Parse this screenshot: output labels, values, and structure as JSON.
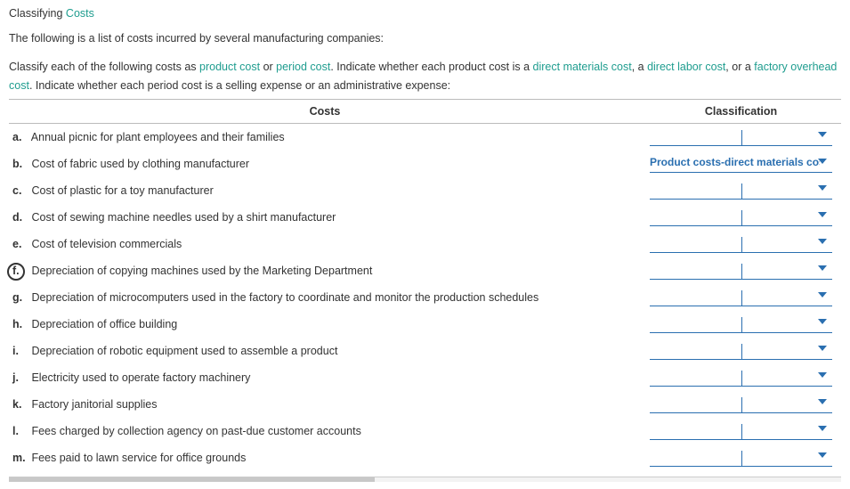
{
  "title": {
    "part1": "Classifying ",
    "part2": "Costs"
  },
  "intro": "The following is a list of costs incurred by several manufacturing companies:",
  "instr": {
    "p0": "Classify each of the following costs as ",
    "l1": "product cost",
    "p1": " or ",
    "l2": "period cost",
    "p2": ". Indicate whether each product cost is a ",
    "l3": "direct materials cost",
    "p3": ", a ",
    "l4": "direct labor cost",
    "p4": ", or a ",
    "l5": "factory overhead cost",
    "p5": ". Indicate whether each period cost is a selling expense or an administrative expense:"
  },
  "headers": {
    "costs": "Costs",
    "classification": "Classification"
  },
  "rows": [
    {
      "letter": "a.",
      "text": "Annual picnic for plant employees and their families",
      "value": "",
      "split": true
    },
    {
      "letter": "b.",
      "text": "Cost of fabric used by clothing manufacturer",
      "value": "Product costs-direct materials cost",
      "split": false
    },
    {
      "letter": "c.",
      "text": "Cost of plastic for a toy manufacturer",
      "value": "",
      "split": true
    },
    {
      "letter": "d.",
      "text": "Cost of sewing machine needles used by a shirt manufacturer",
      "value": "",
      "split": true
    },
    {
      "letter": "e.",
      "text": "Cost of television commercials",
      "value": "",
      "split": true
    },
    {
      "letter": "f.",
      "text": "Depreciation of copying machines used by the Marketing Department",
      "value": "",
      "split": true,
      "circled": true
    },
    {
      "letter": "g.",
      "text": "Depreciation of microcomputers used in the factory to coordinate and monitor the production schedules",
      "value": "",
      "split": true
    },
    {
      "letter": "h.",
      "text": "Depreciation of office building",
      "value": "",
      "split": true
    },
    {
      "letter": "i.",
      "text": "Depreciation of robotic equipment used to assemble a product",
      "value": "",
      "split": true
    },
    {
      "letter": "j.",
      "text": "Electricity used to operate factory machinery",
      "value": "",
      "split": true
    },
    {
      "letter": "k.",
      "text": "Factory janitorial supplies",
      "value": "",
      "split": true
    },
    {
      "letter": "l.",
      "text": "Fees charged by collection agency on past-due customer accounts",
      "value": "",
      "split": true
    },
    {
      "letter": "m.",
      "text": "Fees paid to lawn service for office grounds",
      "value": "",
      "split": true
    }
  ],
  "colors": {
    "teal": "#1f9d8f",
    "blue": "#2a6fb0"
  }
}
